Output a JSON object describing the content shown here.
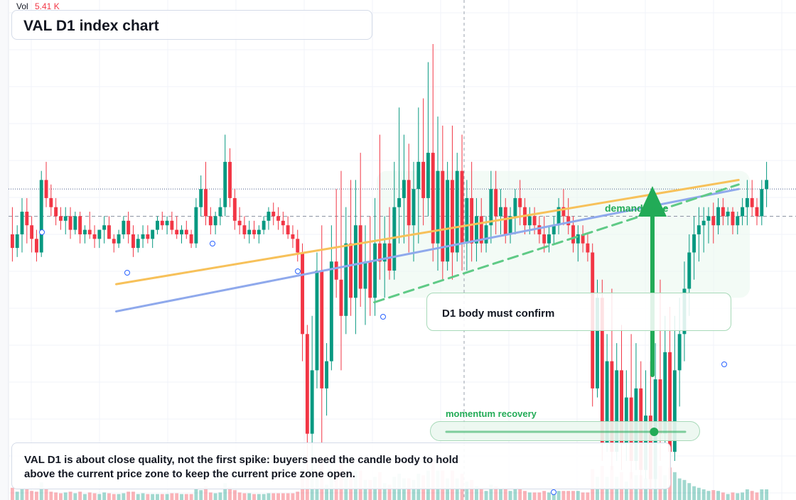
{
  "header": {
    "vol_label": "Vol",
    "vol_value": "5.41 K",
    "title": "VAL D1 index chart"
  },
  "annotations": {
    "demand_zone": "demand zone",
    "confirm_note": "D1 body must confirm",
    "momentum_note": "momentum recovery",
    "momentum_level": 0.87,
    "caption": "VAL D1 is about close quality, not the first spike: buyers need the candle body to hold above the current price zone to keep the current price zone open."
  },
  "colors": {
    "up": "#089981",
    "down": "#f23645",
    "accent_green": "#22ab57",
    "orange_trend": "#f7c15a",
    "blue_trend": "#8fa9ec",
    "green_dashed": "#5fca86"
  },
  "icons": {
    "demand_arrow": "arrow-up-icon",
    "momentum_knob": "slider-knob-icon"
  },
  "chart_data": {
    "type": "candlestick",
    "axes_visible": false,
    "grid": true,
    "volume_pane": true,
    "price_range": [
      0,
      100
    ],
    "current_price": 62,
    "zones": [
      {
        "name": "demand zone",
        "from": 44,
        "to": 72
      },
      {
        "name": "current price zone",
        "from": 58,
        "to": 66
      }
    ],
    "candles": [
      {
        "o": 58,
        "h": 64,
        "l": 52,
        "c": 55
      },
      {
        "o": 55,
        "h": 60,
        "l": 53,
        "c": 58
      },
      {
        "o": 58,
        "h": 66,
        "l": 54,
        "c": 63
      },
      {
        "o": 63,
        "h": 66,
        "l": 56,
        "c": 60
      },
      {
        "o": 60,
        "h": 62,
        "l": 54,
        "c": 57
      },
      {
        "o": 57,
        "h": 59,
        "l": 52,
        "c": 54
      },
      {
        "o": 54,
        "h": 72,
        "l": 53,
        "c": 70
      },
      {
        "o": 70,
        "h": 74,
        "l": 64,
        "c": 66
      },
      {
        "o": 66,
        "h": 69,
        "l": 62,
        "c": 64
      },
      {
        "o": 64,
        "h": 66,
        "l": 60,
        "c": 62
      },
      {
        "o": 62,
        "h": 64,
        "l": 59,
        "c": 61
      },
      {
        "o": 61,
        "h": 64,
        "l": 58,
        "c": 62
      },
      {
        "o": 62,
        "h": 64,
        "l": 57,
        "c": 59
      },
      {
        "o": 59,
        "h": 63,
        "l": 58,
        "c": 62
      },
      {
        "o": 62,
        "h": 63,
        "l": 56,
        "c": 58
      },
      {
        "o": 58,
        "h": 60,
        "l": 56,
        "c": 59
      },
      {
        "o": 59,
        "h": 63,
        "l": 57,
        "c": 58
      },
      {
        "o": 58,
        "h": 60,
        "l": 55,
        "c": 57
      },
      {
        "o": 57,
        "h": 59,
        "l": 55,
        "c": 59
      },
      {
        "o": 59,
        "h": 62,
        "l": 56,
        "c": 60
      },
      {
        "o": 60,
        "h": 62,
        "l": 57,
        "c": 57
      },
      {
        "o": 57,
        "h": 58,
        "l": 54,
        "c": 56
      },
      {
        "o": 56,
        "h": 59,
        "l": 55,
        "c": 58
      },
      {
        "o": 58,
        "h": 62,
        "l": 57,
        "c": 61
      },
      {
        "o": 61,
        "h": 63,
        "l": 56,
        "c": 58
      },
      {
        "o": 58,
        "h": 60,
        "l": 53,
        "c": 55
      },
      {
        "o": 55,
        "h": 58,
        "l": 54,
        "c": 57
      },
      {
        "o": 57,
        "h": 60,
        "l": 55,
        "c": 58
      },
      {
        "o": 58,
        "h": 60,
        "l": 56,
        "c": 57
      },
      {
        "o": 57,
        "h": 59,
        "l": 55,
        "c": 59
      },
      {
        "o": 59,
        "h": 62,
        "l": 58,
        "c": 61
      },
      {
        "o": 61,
        "h": 63,
        "l": 59,
        "c": 60
      },
      {
        "o": 60,
        "h": 62,
        "l": 58,
        "c": 61
      },
      {
        "o": 61,
        "h": 63,
        "l": 58,
        "c": 59
      },
      {
        "o": 59,
        "h": 62,
        "l": 57,
        "c": 58
      },
      {
        "o": 58,
        "h": 60,
        "l": 56,
        "c": 59
      },
      {
        "o": 59,
        "h": 61,
        "l": 57,
        "c": 58
      },
      {
        "o": 58,
        "h": 59,
        "l": 55,
        "c": 56
      },
      {
        "o": 56,
        "h": 66,
        "l": 55,
        "c": 64
      },
      {
        "o": 64,
        "h": 71,
        "l": 62,
        "c": 68
      },
      {
        "o": 68,
        "h": 74,
        "l": 60,
        "c": 62
      },
      {
        "o": 62,
        "h": 64,
        "l": 58,
        "c": 60
      },
      {
        "o": 60,
        "h": 63,
        "l": 58,
        "c": 62
      },
      {
        "o": 62,
        "h": 66,
        "l": 60,
        "c": 64
      },
      {
        "o": 64,
        "h": 80,
        "l": 62,
        "c": 74
      },
      {
        "o": 74,
        "h": 77,
        "l": 64,
        "c": 66
      },
      {
        "o": 66,
        "h": 68,
        "l": 59,
        "c": 61
      },
      {
        "o": 61,
        "h": 64,
        "l": 58,
        "c": 60
      },
      {
        "o": 60,
        "h": 62,
        "l": 57,
        "c": 58
      },
      {
        "o": 58,
        "h": 61,
        "l": 56,
        "c": 59
      },
      {
        "o": 59,
        "h": 61,
        "l": 57,
        "c": 58
      },
      {
        "o": 58,
        "h": 60,
        "l": 56,
        "c": 59
      },
      {
        "o": 59,
        "h": 62,
        "l": 58,
        "c": 61
      },
      {
        "o": 61,
        "h": 64,
        "l": 59,
        "c": 63
      },
      {
        "o": 63,
        "h": 65,
        "l": 60,
        "c": 62
      },
      {
        "o": 62,
        "h": 64,
        "l": 59,
        "c": 61
      },
      {
        "o": 61,
        "h": 63,
        "l": 58,
        "c": 60
      },
      {
        "o": 60,
        "h": 62,
        "l": 57,
        "c": 58
      },
      {
        "o": 58,
        "h": 60,
        "l": 55,
        "c": 57
      },
      {
        "o": 57,
        "h": 59,
        "l": 52,
        "c": 54
      },
      {
        "o": 54,
        "h": 56,
        "l": 30,
        "c": 36
      },
      {
        "o": 36,
        "h": 38,
        "l": 6,
        "c": 14
      },
      {
        "o": 14,
        "h": 40,
        "l": 4,
        "c": 28
      },
      {
        "o": 28,
        "h": 54,
        "l": 24,
        "c": 50
      },
      {
        "o": 50,
        "h": 60,
        "l": 12,
        "c": 24
      },
      {
        "o": 24,
        "h": 34,
        "l": 18,
        "c": 30
      },
      {
        "o": 30,
        "h": 60,
        "l": 28,
        "c": 52
      },
      {
        "o": 52,
        "h": 68,
        "l": 44,
        "c": 48
      },
      {
        "o": 48,
        "h": 72,
        "l": 28,
        "c": 40
      },
      {
        "o": 40,
        "h": 64,
        "l": 36,
        "c": 56
      },
      {
        "o": 56,
        "h": 70,
        "l": 40,
        "c": 44
      },
      {
        "o": 44,
        "h": 70,
        "l": 36,
        "c": 60
      },
      {
        "o": 60,
        "h": 76,
        "l": 42,
        "c": 46
      },
      {
        "o": 46,
        "h": 60,
        "l": 38,
        "c": 52
      },
      {
        "o": 52,
        "h": 62,
        "l": 40,
        "c": 44
      },
      {
        "o": 44,
        "h": 66,
        "l": 40,
        "c": 56
      },
      {
        "o": 56,
        "h": 80,
        "l": 48,
        "c": 52
      },
      {
        "o": 52,
        "h": 62,
        "l": 44,
        "c": 56
      },
      {
        "o": 56,
        "h": 64,
        "l": 48,
        "c": 50
      },
      {
        "o": 50,
        "h": 74,
        "l": 48,
        "c": 64
      },
      {
        "o": 64,
        "h": 86,
        "l": 56,
        "c": 66
      },
      {
        "o": 66,
        "h": 80,
        "l": 56,
        "c": 70
      },
      {
        "o": 70,
        "h": 78,
        "l": 54,
        "c": 60
      },
      {
        "o": 60,
        "h": 74,
        "l": 52,
        "c": 68
      },
      {
        "o": 68,
        "h": 86,
        "l": 56,
        "c": 74
      },
      {
        "o": 74,
        "h": 88,
        "l": 60,
        "c": 66
      },
      {
        "o": 66,
        "h": 96,
        "l": 62,
        "c": 76
      },
      {
        "o": 76,
        "h": 100,
        "l": 52,
        "c": 56
      },
      {
        "o": 56,
        "h": 84,
        "l": 50,
        "c": 72
      },
      {
        "o": 72,
        "h": 82,
        "l": 48,
        "c": 52
      },
      {
        "o": 52,
        "h": 74,
        "l": 50,
        "c": 70
      },
      {
        "o": 70,
        "h": 82,
        "l": 48,
        "c": 54
      },
      {
        "o": 54,
        "h": 76,
        "l": 52,
        "c": 72
      },
      {
        "o": 72,
        "h": 80,
        "l": 50,
        "c": 56
      },
      {
        "o": 56,
        "h": 70,
        "l": 50,
        "c": 66
      },
      {
        "o": 66,
        "h": 74,
        "l": 52,
        "c": 56
      },
      {
        "o": 56,
        "h": 66,
        "l": 52,
        "c": 62
      },
      {
        "o": 62,
        "h": 66,
        "l": 54,
        "c": 56
      },
      {
        "o": 56,
        "h": 62,
        "l": 54,
        "c": 60
      },
      {
        "o": 60,
        "h": 72,
        "l": 56,
        "c": 68
      },
      {
        "o": 68,
        "h": 72,
        "l": 58,
        "c": 62
      },
      {
        "o": 62,
        "h": 68,
        "l": 58,
        "c": 64
      },
      {
        "o": 64,
        "h": 66,
        "l": 56,
        "c": 58
      },
      {
        "o": 58,
        "h": 64,
        "l": 56,
        "c": 62
      },
      {
        "o": 62,
        "h": 68,
        "l": 58,
        "c": 66
      },
      {
        "o": 66,
        "h": 70,
        "l": 60,
        "c": 64
      },
      {
        "o": 64,
        "h": 66,
        "l": 58,
        "c": 60
      },
      {
        "o": 60,
        "h": 64,
        "l": 58,
        "c": 62
      },
      {
        "o": 62,
        "h": 64,
        "l": 58,
        "c": 60
      },
      {
        "o": 60,
        "h": 62,
        "l": 56,
        "c": 58
      },
      {
        "o": 58,
        "h": 62,
        "l": 54,
        "c": 56
      },
      {
        "o": 56,
        "h": 60,
        "l": 54,
        "c": 58
      },
      {
        "o": 58,
        "h": 62,
        "l": 56,
        "c": 60
      },
      {
        "o": 60,
        "h": 66,
        "l": 58,
        "c": 64
      },
      {
        "o": 64,
        "h": 68,
        "l": 60,
        "c": 62
      },
      {
        "o": 62,
        "h": 66,
        "l": 58,
        "c": 60
      },
      {
        "o": 60,
        "h": 62,
        "l": 54,
        "c": 56
      },
      {
        "o": 56,
        "h": 60,
        "l": 52,
        "c": 58
      },
      {
        "o": 58,
        "h": 60,
        "l": 54,
        "c": 56
      },
      {
        "o": 56,
        "h": 58,
        "l": 52,
        "c": 54
      },
      {
        "o": 54,
        "h": 56,
        "l": 20,
        "c": 24
      },
      {
        "o": 24,
        "h": 48,
        "l": 22,
        "c": 44
      },
      {
        "o": 44,
        "h": 48,
        "l": 8,
        "c": 12
      },
      {
        "o": 12,
        "h": 36,
        "l": 10,
        "c": 30
      },
      {
        "o": 30,
        "h": 46,
        "l": 6,
        "c": 10
      },
      {
        "o": 10,
        "h": 34,
        "l": 8,
        "c": 28
      },
      {
        "o": 28,
        "h": 38,
        "l": 6,
        "c": 12
      },
      {
        "o": 12,
        "h": 28,
        "l": 8,
        "c": 22
      },
      {
        "o": 22,
        "h": 36,
        "l": 4,
        "c": 8
      },
      {
        "o": 8,
        "h": 34,
        "l": 6,
        "c": 24
      },
      {
        "o": 24,
        "h": 30,
        "l": 2,
        "c": 6
      },
      {
        "o": 6,
        "h": 28,
        "l": 4,
        "c": 18
      },
      {
        "o": 18,
        "h": 30,
        "l": 2,
        "c": 4
      },
      {
        "o": 4,
        "h": 34,
        "l": 2,
        "c": 26
      },
      {
        "o": 26,
        "h": 48,
        "l": 8,
        "c": 14
      },
      {
        "o": 14,
        "h": 40,
        "l": 12,
        "c": 32
      },
      {
        "o": 32,
        "h": 42,
        "l": 4,
        "c": 10
      },
      {
        "o": 10,
        "h": 40,
        "l": 8,
        "c": 28
      },
      {
        "o": 28,
        "h": 44,
        "l": 20,
        "c": 36
      },
      {
        "o": 36,
        "h": 52,
        "l": 30,
        "c": 46
      },
      {
        "o": 46,
        "h": 58,
        "l": 40,
        "c": 54
      },
      {
        "o": 54,
        "h": 62,
        "l": 48,
        "c": 58
      },
      {
        "o": 58,
        "h": 64,
        "l": 52,
        "c": 60
      },
      {
        "o": 60,
        "h": 64,
        "l": 54,
        "c": 61
      },
      {
        "o": 61,
        "h": 64,
        "l": 56,
        "c": 62
      },
      {
        "o": 62,
        "h": 65,
        "l": 56,
        "c": 60
      },
      {
        "o": 60,
        "h": 66,
        "l": 58,
        "c": 64
      },
      {
        "o": 64,
        "h": 66,
        "l": 60,
        "c": 62
      },
      {
        "o": 62,
        "h": 64,
        "l": 60,
        "c": 63
      },
      {
        "o": 63,
        "h": 64,
        "l": 58,
        "c": 60
      },
      {
        "o": 60,
        "h": 63,
        "l": 58,
        "c": 62
      },
      {
        "o": 62,
        "h": 66,
        "l": 60,
        "c": 64
      },
      {
        "o": 64,
        "h": 70,
        "l": 60,
        "c": 66
      },
      {
        "o": 66,
        "h": 70,
        "l": 62,
        "c": 64
      },
      {
        "o": 64,
        "h": 66,
        "l": 60,
        "c": 62
      },
      {
        "o": 62,
        "h": 70,
        "l": 60,
        "c": 68
      },
      {
        "o": 68,
        "h": 74,
        "l": 64,
        "c": 70
      }
    ],
    "trendlines": [
      {
        "name": "orange trend",
        "x": [
          0.14,
          0.96
        ],
        "y": [
          47,
          70
        ]
      },
      {
        "name": "blue trend",
        "x": [
          0.14,
          0.96
        ],
        "y": [
          41,
          68
        ]
      },
      {
        "name": "green dashed",
        "x": [
          0.48,
          0.96
        ],
        "y": [
          43,
          69
        ]
      }
    ]
  }
}
